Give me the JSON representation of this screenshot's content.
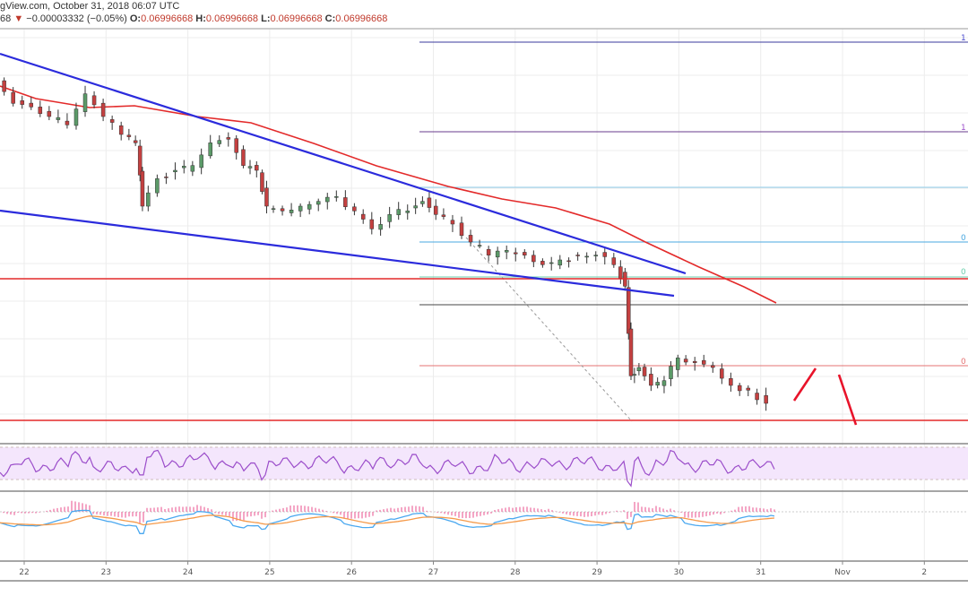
{
  "header": {
    "source_line": "gView.com, October 31, 2018 06:07 UTC",
    "price_prefix": "68",
    "change": "−0.00003332 (−0.05%)",
    "o_label": "O:",
    "o": "0.06996668",
    "h_label": "H:",
    "h": "0.06996668",
    "l_label": "L:",
    "l": "0.06996668",
    "c_label": "C:",
    "c": "0.06996668"
  },
  "fib_labels": [
    "1",
    "1",
    "0",
    "0",
    "0"
  ],
  "colors": {
    "up": "#5b9a68",
    "down": "#c44040",
    "trend": "#2b2bdc",
    "ma": "#e32a2a",
    "level": "#e32a2a",
    "rsi": "#9b4dca",
    "macd": "#4aa8f0",
    "signal": "#f59a4a",
    "hist": "#e84c8b"
  },
  "chart_data": {
    "type": "candlestick",
    "title": "",
    "xlabel": "",
    "ylabel": "",
    "x_ticks": [
      "22",
      "23",
      "24",
      "25",
      "26",
      "27",
      "28",
      "29",
      "30",
      "31",
      "Nov",
      "2"
    ],
    "ylim": [
      0.06967,
      0.07312
    ],
    "xlim_days": [
      21.7,
      32.3
    ],
    "t": [
      21.7,
      21.92,
      22.14,
      22.36,
      22.58,
      22.8,
      23.02,
      23.24,
      23.4,
      23.46,
      23.68,
      23.9,
      24.11,
      24.33,
      24.55,
      24.72,
      24.88,
      24.99,
      25.21,
      25.43,
      25.65,
      25.87,
      26.09,
      26.3,
      26.52,
      26.74,
      26.91,
      27.07,
      27.29,
      27.51,
      27.73,
      27.95,
      28.17,
      28.39,
      28.6,
      28.82,
      29.04,
      29.26,
      29.37,
      29.43,
      29.54,
      29.7,
      29.86,
      30.03,
      30.25,
      30.47,
      30.69,
      30.9,
      31.12
    ],
    "close": [
      0.07267,
      0.07248,
      0.07245,
      0.07237,
      0.0723,
      0.07256,
      0.07237,
      0.07222,
      0.07215,
      0.07162,
      0.07185,
      0.07192,
      0.07196,
      0.07215,
      0.07218,
      0.07196,
      0.07192,
      0.07162,
      0.07158,
      0.07162,
      0.07166,
      0.0717,
      0.07158,
      0.07143,
      0.07155,
      0.07158,
      0.07166,
      0.07155,
      0.07147,
      0.07132,
      0.07121,
      0.07125,
      0.07121,
      0.07113,
      0.07117,
      0.07121,
      0.07121,
      0.07113,
      0.07095,
      0.0702,
      0.07027,
      0.07012,
      0.07016,
      0.07035,
      0.07031,
      0.07027,
      0.07012,
      0.07008,
      0.06997
    ],
    "last_close": 0.06996668,
    "indicators": [
      "RSI",
      "MACD"
    ],
    "grid": true
  }
}
